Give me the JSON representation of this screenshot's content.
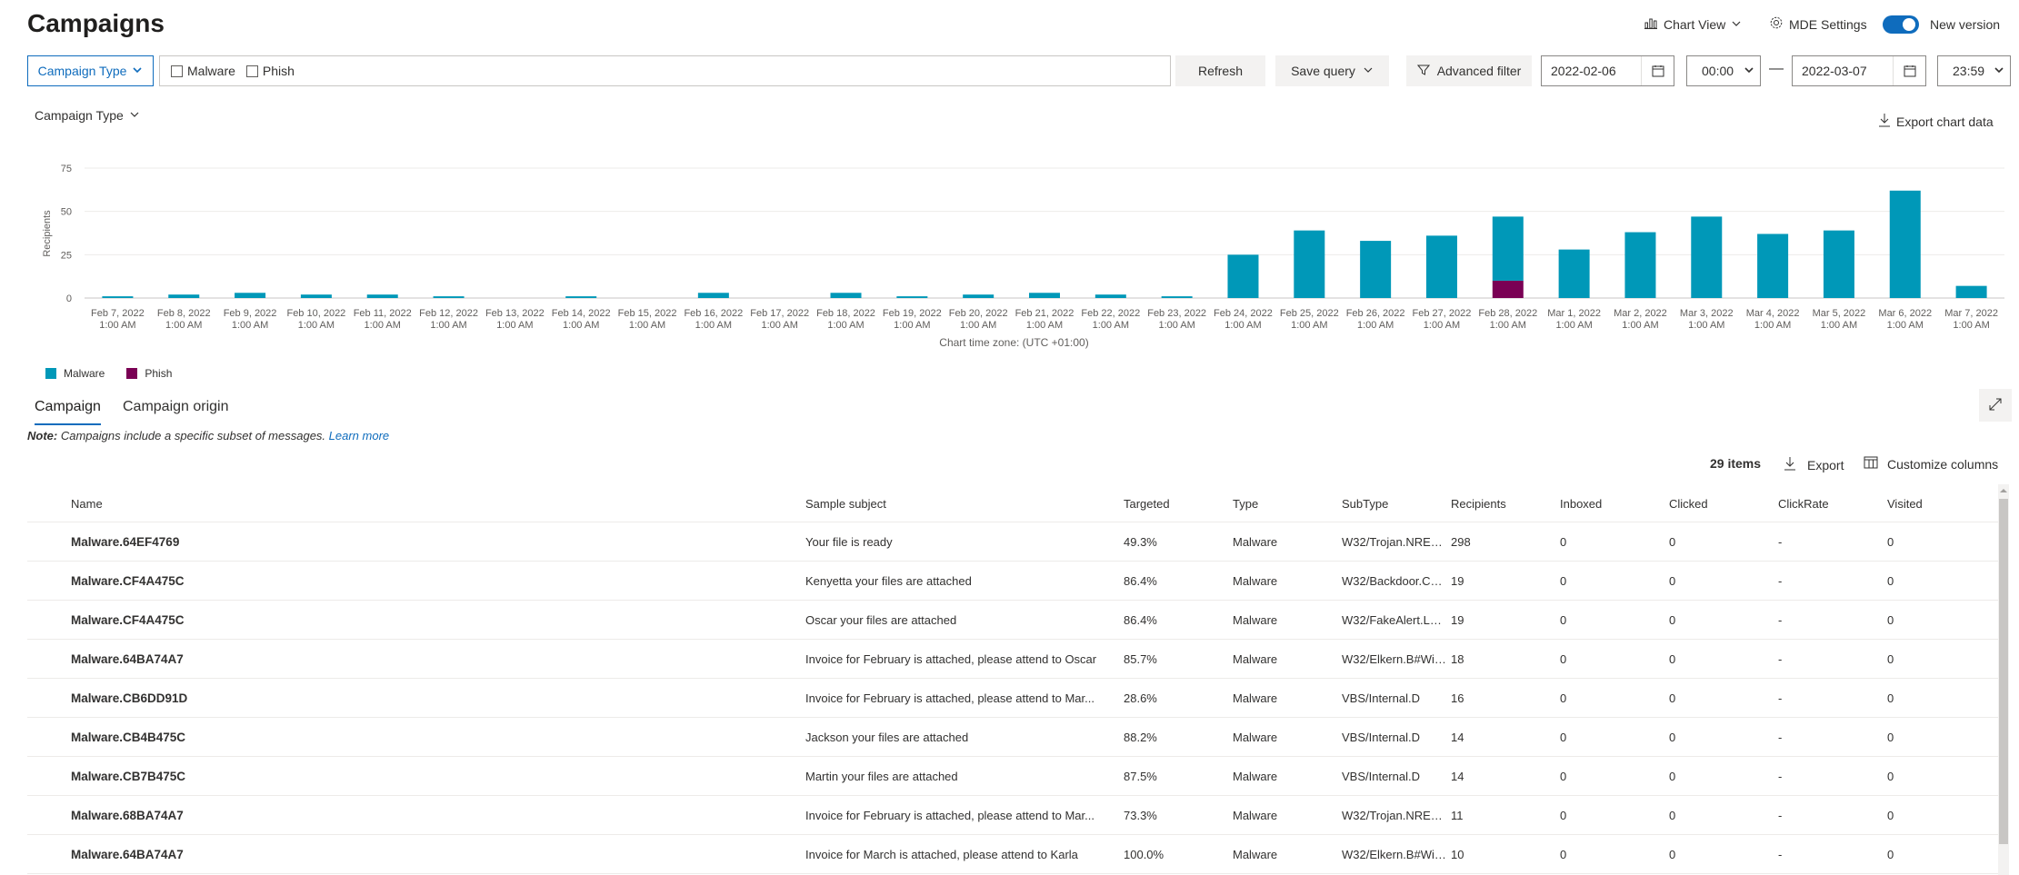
{
  "header": {
    "title": "Campaigns",
    "chart_view_label": "Chart View",
    "mde_settings_label": "MDE Settings",
    "new_version_label": "New version"
  },
  "filter": {
    "campaign_type_label": "Campaign Type",
    "malware_label": "Malware",
    "phish_label": "Phish",
    "refresh_label": "Refresh",
    "save_query_label": "Save query",
    "advanced_filter_label": "Advanced filter",
    "start_date": "2022-02-06",
    "start_time": "00:00",
    "end_date": "2022-03-07",
    "end_time": "23:59",
    "date_separator": "—"
  },
  "chart_section": {
    "group_by_label": "Campaign Type",
    "export_label": "Export chart data",
    "timezone_note": "Chart time zone: (UTC +01:00)"
  },
  "chart_data": {
    "type": "bar",
    "stacked": true,
    "ylabel": "Recipients",
    "ylim": [
      0,
      75
    ],
    "yticks": [
      0,
      25,
      50,
      75
    ],
    "categories": [
      "Feb 7, 2022",
      "Feb 8, 2022",
      "Feb 9, 2022",
      "Feb 10, 2022",
      "Feb 11, 2022",
      "Feb 12, 2022",
      "Feb 13, 2022",
      "Feb 14, 2022",
      "Feb 15, 2022",
      "Feb 16, 2022",
      "Feb 17, 2022",
      "Feb 18, 2022",
      "Feb 19, 2022",
      "Feb 20, 2022",
      "Feb 21, 2022",
      "Feb 22, 2022",
      "Feb 23, 2022",
      "Feb 24, 2022",
      "Feb 25, 2022",
      "Feb 26, 2022",
      "Feb 27, 2022",
      "Feb 28, 2022",
      "Mar 1, 2022",
      "Mar 2, 2022",
      "Mar 3, 2022",
      "Mar 4, 2022",
      "Mar 5, 2022",
      "Mar 6, 2022",
      "Mar 7, 2022"
    ],
    "category_sublabel": "1:00 AM",
    "series": [
      {
        "name": "Malware",
        "color": "#0098b8",
        "values": [
          1,
          2,
          3,
          2,
          2,
          1,
          0,
          1,
          0,
          3,
          0,
          3,
          1,
          2,
          3,
          2,
          1,
          25,
          39,
          33,
          36,
          37,
          28,
          38,
          47,
          37,
          39,
          62,
          7
        ]
      },
      {
        "name": "Phish",
        "color": "#7a0054",
        "values": [
          0,
          0,
          0,
          0,
          0,
          0,
          0,
          0,
          0,
          0,
          0,
          0,
          0,
          0,
          0,
          0,
          0,
          0,
          0,
          0,
          0,
          10,
          0,
          0,
          0,
          0,
          0,
          0,
          0
        ]
      }
    ],
    "grid": true,
    "legend_position": "bottom-left"
  },
  "tabs": [
    {
      "label": "Campaign",
      "active": true
    },
    {
      "label": "Campaign origin",
      "active": false
    }
  ],
  "note": {
    "prefix": "Note:",
    "text": " Campaigns include a specific subset of messages. ",
    "link": "Learn more"
  },
  "table_toolbar": {
    "items_count": "29 items",
    "export_label": "Export",
    "customize_label": "Customize columns"
  },
  "table": {
    "columns": [
      "Name",
      "Sample subject",
      "Targeted",
      "Type",
      "SubType",
      "Recipients",
      "Inboxed",
      "Clicked",
      "ClickRate",
      "Visited"
    ],
    "rows": [
      [
        "Malware.64EF4769",
        "Your file is ready",
        "49.3%",
        "Malware",
        "W32/Trojan.NREO-...",
        "298",
        "0",
        "0",
        "-",
        "0"
      ],
      [
        "Malware.CF4A475C",
        "Kenyetta your files are attached",
        "86.4%",
        "Malware",
        "W32/Backdoor.CN...",
        "19",
        "0",
        "0",
        "-",
        "0"
      ],
      [
        "Malware.CF4A475C",
        "Oscar your files are attached",
        "86.4%",
        "Malware",
        "W32/FakeAlert.LP....",
        "19",
        "0",
        "0",
        "-",
        "0"
      ],
      [
        "Malware.64BA74A7",
        "Invoice for February is attached, please attend to Oscar",
        "85.7%",
        "Malware",
        "W32/Elkern.B#Win...",
        "18",
        "0",
        "0",
        "-",
        "0"
      ],
      [
        "Malware.CB6DD91D",
        "Invoice for February is attached, please attend to Mar...",
        "28.6%",
        "Malware",
        "VBS/Internal.D",
        "16",
        "0",
        "0",
        "-",
        "0"
      ],
      [
        "Malware.CB4B475C",
        "Jackson your files are attached",
        "88.2%",
        "Malware",
        "VBS/Internal.D",
        "14",
        "0",
        "0",
        "-",
        "0"
      ],
      [
        "Malware.CB7B475C",
        "Martin your files are attached",
        "87.5%",
        "Malware",
        "VBS/Internal.D",
        "14",
        "0",
        "0",
        "-",
        "0"
      ],
      [
        "Malware.68BA74A7",
        "Invoice for February is attached, please attend to Mar...",
        "73.3%",
        "Malware",
        "W32/Trojan.NREO-...",
        "11",
        "0",
        "0",
        "-",
        "0"
      ],
      [
        "Malware.64BA74A7",
        "Invoice for March is attached, please attend to Karla",
        "100.0%",
        "Malware",
        "W32/Elkern.B#Win...",
        "10",
        "0",
        "0",
        "-",
        "0"
      ]
    ]
  },
  "colors": {
    "accent": "#0f6cbd",
    "malware": "#0098b8",
    "phish": "#7a0054"
  }
}
